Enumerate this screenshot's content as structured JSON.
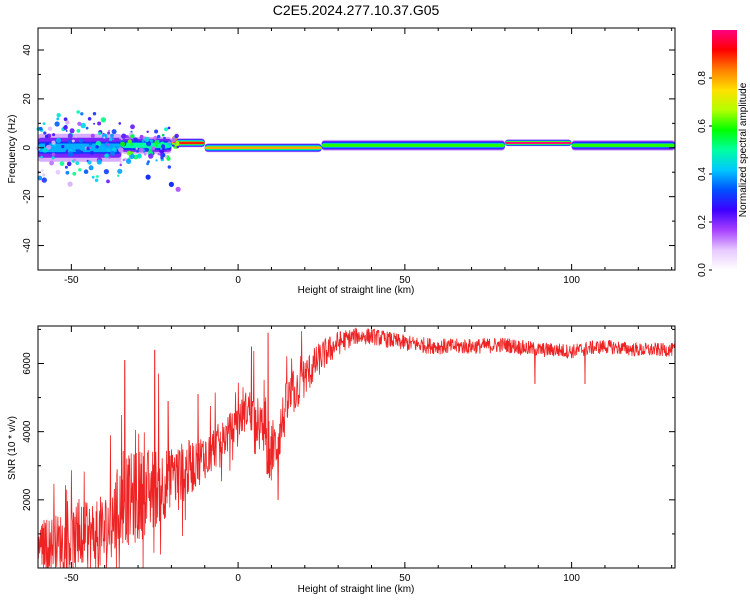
{
  "figure_title": "C2E5.2024.277.10.37.G05",
  "chart_data": [
    {
      "type": "heatmap",
      "title": "C2E5.2024.277.10.37.G05",
      "xlabel": "Height of straight line (km)",
      "ylabel": "Frequency (Hz)",
      "xlim": [
        -60,
        131
      ],
      "ylim": [
        -50,
        49
      ],
      "xticks": [
        -50,
        0,
        50,
        100
      ],
      "xtick_labels": [
        "-50",
        "0",
        "50",
        "100"
      ],
      "yticks": [
        -40,
        -20,
        0,
        20,
        40
      ],
      "ytick_labels": [
        "-40",
        "-20",
        "0",
        "20",
        "40"
      ],
      "colorbar": {
        "label": "Normalized spectral amplitude",
        "range": [
          0,
          1
        ],
        "ticks": [
          0.0,
          0.2,
          0.4,
          0.6,
          0.8
        ],
        "tick_labels": [
          "0.0",
          "0.2",
          "0.4",
          "0.6",
          "0.8"
        ],
        "colors": [
          "#ffffff",
          "#e6c9ff",
          "#a640ff",
          "#3d00ff",
          "#0050ff",
          "#00c8ff",
          "#00ffa0",
          "#00ff00",
          "#b4ff00",
          "#ffe000",
          "#ff8000",
          "#ff0000",
          "#ff0080"
        ]
      },
      "ridge": {
        "description": "narrow band centered near 0 Hz; broadband scatter below -20 km",
        "segments": [
          {
            "x": [
              -60,
              -35
            ],
            "center_hz": 0,
            "half_width_hz": 7,
            "peak_amplitude": 0.45
          },
          {
            "x": [
              -35,
              -20
            ],
            "center_hz": 1,
            "half_width_hz": 4,
            "peak_amplitude": 0.55
          },
          {
            "x": [
              -20,
              -10
            ],
            "center_hz": 2,
            "half_width_hz": 2,
            "peak_amplitude": 0.9
          },
          {
            "x": [
              -10,
              25
            ],
            "center_hz": 0,
            "half_width_hz": 2,
            "peak_amplitude": 0.85
          },
          {
            "x": [
              25,
              80
            ],
            "center_hz": 1,
            "half_width_hz": 2.5,
            "peak_amplitude": 0.65
          },
          {
            "x": [
              80,
              100
            ],
            "center_hz": 2,
            "half_width_hz": 1.5,
            "peak_amplitude": 1.0
          },
          {
            "x": [
              100,
              131
            ],
            "center_hz": 1,
            "half_width_hz": 2.5,
            "peak_amplitude": 0.6
          }
        ],
        "outliers": [
          {
            "x": -27,
            "hz": -12,
            "amplitude": 0.3
          },
          {
            "x": -20,
            "hz": -15,
            "amplitude": 0.3
          },
          {
            "x": -18,
            "hz": -17,
            "amplitude": 0.15
          }
        ]
      }
    },
    {
      "type": "line",
      "xlabel": "Height of straight line (km)",
      "ylabel": "SNR (10 * v/v)",
      "xlim": [
        -60,
        131
      ],
      "ylim": [
        0,
        7100
      ],
      "xticks": [
        -50,
        0,
        50,
        100
      ],
      "xtick_labels": [
        "-50",
        "0",
        "50",
        "100"
      ],
      "yticks": [
        2000,
        4000,
        6000
      ],
      "ytick_labels": [
        "2000",
        "4000",
        "6000"
      ],
      "color": "#ee2222",
      "trend": {
        "x": [
          -60,
          -50,
          -40,
          -35,
          -30,
          -25,
          -20,
          -15,
          -10,
          -5,
          0,
          3,
          6,
          9,
          11,
          15,
          20,
          25,
          30,
          35,
          40,
          50,
          60,
          70,
          80,
          90,
          95,
          100,
          105,
          110,
          120,
          131
        ],
        "y": [
          700,
          800,
          1000,
          1900,
          2100,
          2350,
          2600,
          2900,
          3300,
          3700,
          4300,
          4700,
          4300,
          3500,
          3500,
          4900,
          5600,
          6200,
          6600,
          6800,
          6800,
          6600,
          6500,
          6500,
          6550,
          6400,
          6400,
          6350,
          6450,
          6500,
          6400,
          6400
        ]
      },
      "noise_amplitude": {
        "x": [
          -60,
          -35,
          -30,
          -20,
          -10,
          0,
          10,
          20,
          35,
          131
        ],
        "y": [
          700,
          1300,
          1400,
          1000,
          700,
          500,
          900,
          600,
          250,
          200
        ]
      },
      "spikes": [
        {
          "x": -34,
          "y": 6100
        },
        {
          "x": -25,
          "y": 6400
        },
        {
          "x": -21,
          "y": 4900
        },
        {
          "x": -12,
          "y": 5100
        },
        {
          "x": 4,
          "y": 6500
        },
        {
          "x": 9,
          "y": 6900
        },
        {
          "x": 12,
          "y": 2000
        },
        {
          "x": 9.5,
          "y": 2700
        },
        {
          "x": 89,
          "y": 5400
        },
        {
          "x": 104,
          "y": 5400
        }
      ]
    }
  ]
}
